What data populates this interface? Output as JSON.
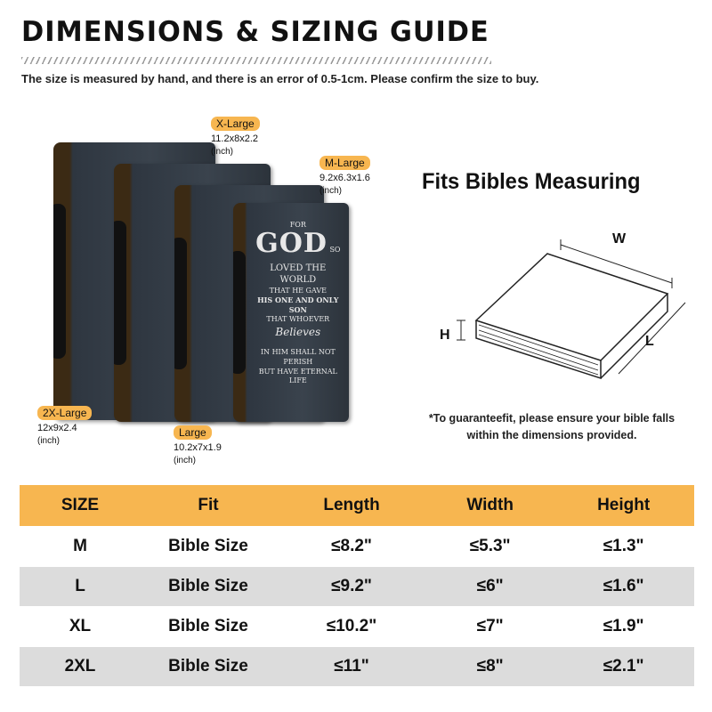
{
  "title": "DIMENSIONS & SIZING GUIDE",
  "subtitle": "The size is measured by hand, and there is an error of 0.5-1cm. Please confirm the size to buy.",
  "cover": {
    "line1": "FOR",
    "god": "GOD",
    "line2": "SO",
    "loved": "LOVED THE WORLD",
    "gave": "THAT HE GAVE",
    "son": "HIS ONE AND ONLY SON",
    "whoever": "THAT WHOEVER",
    "believes": "Believes",
    "perish": "IN HIM SHALL NOT PERISH",
    "life": "BUT HAVE ETERNAL LIFE"
  },
  "sizes": [
    {
      "tag": "X-Large",
      "dims": "11.2x8x2.2",
      "unit": "(inch)"
    },
    {
      "tag": "M-Large",
      "dims": "9.2x6.3x1.6",
      "unit": "(inch)"
    },
    {
      "tag": "2X-Large",
      "dims": "12x9x2.4",
      "unit": "(inch)"
    },
    {
      "tag": "Large",
      "dims": "10.2x7x1.9",
      "unit": "(inch)"
    }
  ],
  "fits": {
    "title": "Fits Bibles Measuring",
    "w": "W",
    "h": "H",
    "l": "L",
    "note1": "*To guaranteefit, please ensure your bible falls",
    "note2": "within the dimensions provided."
  },
  "table": {
    "headers": [
      "SIZE",
      "Fit",
      "Length",
      "Width",
      "Height"
    ],
    "rows": [
      [
        "M",
        "Bible Size",
        "≤8.2\"",
        "≤5.3\"",
        "≤1.3\""
      ],
      [
        "L",
        "Bible Size",
        "≤9.2\"",
        "≤6\"",
        "≤1.6\""
      ],
      [
        "XL",
        "Bible Size",
        "≤10.2\"",
        "≤7\"",
        "≤1.9\""
      ],
      [
        "2XL",
        "Bible Size",
        "≤11\"",
        "≤8\"",
        "≤2.1\""
      ]
    ]
  },
  "colors": {
    "accent": "#f7b650",
    "row_alt": "#dcdcdc"
  }
}
